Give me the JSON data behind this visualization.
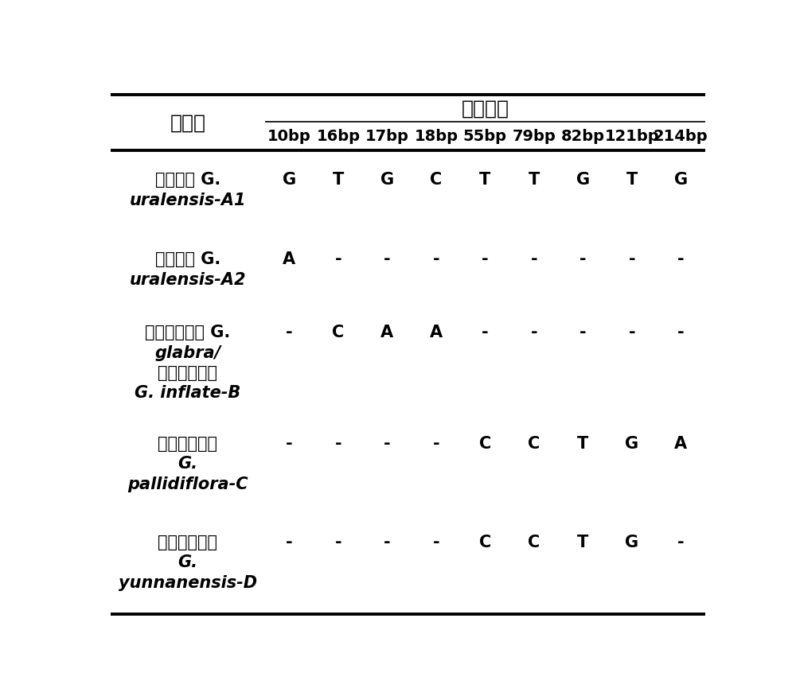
{
  "col0_header": "单倍型",
  "group_header": "变异位点",
  "col_headers": [
    "10bp",
    "16bp",
    "17bp",
    "18bp",
    "55bp",
    "79bp",
    "82bp",
    "121bp",
    "214bp"
  ],
  "data_values": [
    [
      "G",
      "T",
      "G",
      "C",
      "T",
      "T",
      "G",
      "T",
      "G"
    ],
    [
      "A",
      "-",
      "-",
      "-",
      "-",
      "-",
      "-",
      "-",
      "-"
    ],
    [
      "-",
      "C",
      "A",
      "A",
      "-",
      "-",
      "-",
      "-",
      "-"
    ],
    [
      "-",
      "-",
      "-",
      "-",
      "C",
      "C",
      "T",
      "G",
      "A"
    ],
    [
      "-",
      "-",
      "-",
      "-",
      "C",
      "C",
      "T",
      "G",
      "-"
    ]
  ],
  "row_labels": [
    [
      [
        "（甘草） G.",
        false
      ],
      [
        "uralensis-A1",
        true
      ]
    ],
    [
      [
        "（甘草） G.",
        false
      ],
      [
        "uralensis-A2",
        true
      ]
    ],
    [
      [
        "（光果甘草） G.",
        false
      ],
      [
        "glabra/",
        true
      ],
      [
        "（胀果甘草）",
        false
      ],
      [
        "G. inflate-B",
        true
      ]
    ],
    [
      [
        "（刺果甘草）",
        false
      ],
      [
        "G.",
        true
      ],
      [
        "pallidiflora-C",
        true
      ]
    ],
    [
      [
        "（云南甘草）",
        false
      ],
      [
        "G.",
        true
      ],
      [
        "yunnanensis-D",
        true
      ]
    ]
  ],
  "bg_color": "#ffffff"
}
